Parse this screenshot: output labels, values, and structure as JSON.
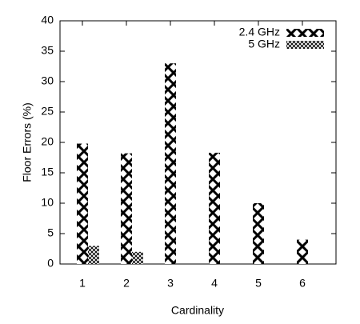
{
  "chart_data": {
    "type": "bar",
    "x_label": "Cardinality",
    "y_label": "Floor Errors (%)",
    "categories": [
      "1",
      "2",
      "3",
      "4",
      "5",
      "6"
    ],
    "series": [
      {
        "name": "2.4 GHz",
        "color": "#000000",
        "values": [
          19.8,
          18.2,
          33,
          18.3,
          10,
          4
        ]
      },
      {
        "name": "5 GHz",
        "color": "#000000",
        "values": [
          3,
          2,
          0,
          0,
          0,
          0
        ]
      }
    ],
    "ylim": [
      0,
      40
    ],
    "yticks": [
      0,
      5,
      10,
      15,
      20,
      25,
      30,
      35,
      40
    ],
    "grid": false,
    "legend": "top-right"
  }
}
